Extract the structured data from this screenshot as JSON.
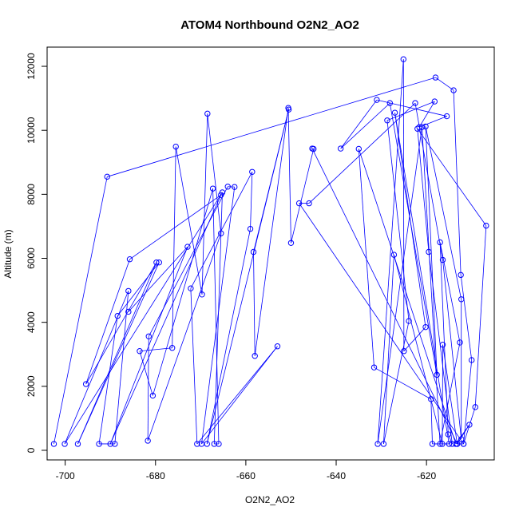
{
  "chart_data": {
    "type": "scatter",
    "title": "ATOM4 Northbound O2N2_AO2",
    "xlabel": "O2N2_AO2",
    "ylabel": "Altitude (m)",
    "xlim": [
      -704,
      -605
    ],
    "ylim": [
      -300,
      12600
    ],
    "x_ticks": [
      -700,
      -680,
      -660,
      -640,
      -620
    ],
    "y_ticks": [
      0,
      2000,
      4000,
      6000,
      8000,
      10000,
      12000
    ],
    "grid": false,
    "connected_points": true,
    "series": [
      {
        "color": "#0000ff",
        "points": [
          [
            -702.5,
            200
          ],
          [
            -690.7,
            8550
          ],
          [
            -618.0,
            11650
          ],
          [
            -614.0,
            11250
          ],
          [
            -612.4,
            5480
          ],
          [
            -610.0,
            2820
          ],
          [
            -611.8,
            200
          ],
          [
            -609.2,
            1350
          ],
          [
            -606.8,
            7020
          ],
          [
            -622.0,
            10050
          ],
          [
            -619.5,
            6200
          ],
          [
            -614.3,
            200
          ],
          [
            -615.2,
            500
          ],
          [
            -617.0,
            6500
          ],
          [
            -612.6,
            3370
          ],
          [
            -617.0,
            200
          ],
          [
            -621.0,
            10100
          ],
          [
            -630.8,
            200
          ],
          [
            -625.1,
            12220
          ],
          [
            -625.0,
            3100
          ],
          [
            -620.2,
            3850
          ],
          [
            -627.0,
            10550
          ],
          [
            -615.0,
            200
          ],
          [
            -618.7,
            200
          ],
          [
            -619.0,
            1600
          ],
          [
            -631.6,
            2590
          ],
          [
            -635.0,
            9420
          ],
          [
            -613.5,
            200
          ],
          [
            -610.5,
            800
          ],
          [
            -613.2,
            200
          ],
          [
            -616.4,
            3300
          ],
          [
            -616.5,
            200
          ],
          [
            -627.2,
            6110
          ],
          [
            -629.5,
            200
          ],
          [
            -623.9,
            4040
          ],
          [
            -628.7,
            10310
          ],
          [
            -618.2,
            10900
          ],
          [
            -621.6,
            10100
          ],
          [
            -615.5,
            10440
          ],
          [
            -631.0,
            10950
          ],
          [
            -639.0,
            9430
          ],
          [
            -628.1,
            10850
          ],
          [
            -617.7,
            2360
          ],
          [
            -620.2,
            10120
          ],
          [
            -612.3,
            4720
          ],
          [
            -612.3,
            350
          ],
          [
            -616.4,
            5950
          ],
          [
            -622.5,
            10850
          ],
          [
            -646.0,
            7720
          ],
          [
            -648.2,
            7720
          ],
          [
            -611.8,
            200
          ],
          [
            -613.2,
            200
          ],
          [
            -645.3,
            9430
          ],
          [
            -645.0,
            9420
          ],
          [
            -650.0,
            6480
          ],
          [
            -650.6,
            10700
          ],
          [
            -658.0,
            2950
          ],
          [
            -658.3,
            6200
          ],
          [
            -650.5,
            10650
          ],
          [
            -668.6,
            200
          ],
          [
            -659.0,
            6920
          ],
          [
            -658.6,
            8700
          ],
          [
            -672.2,
            5060
          ],
          [
            -670.8,
            200
          ],
          [
            -653.0,
            3250
          ],
          [
            -669.8,
            200
          ],
          [
            -662.5,
            8230
          ],
          [
            -664.0,
            8240
          ],
          [
            -681.5,
            3560
          ],
          [
            -681.7,
            300
          ],
          [
            -665.5,
            6780
          ],
          [
            -668.5,
            10520
          ],
          [
            -669.7,
            4870
          ],
          [
            -675.5,
            9490
          ],
          [
            -676.3,
            3200
          ],
          [
            -683.5,
            3100
          ],
          [
            -680.6,
            1710
          ],
          [
            -667.3,
            8180
          ],
          [
            -666.0,
            200
          ],
          [
            -667.0,
            200
          ],
          [
            -665.2,
            8060
          ],
          [
            -700.1,
            200
          ],
          [
            -686.0,
            4980
          ],
          [
            -689.0,
            200
          ],
          [
            -692.5,
            200
          ],
          [
            -688.4,
            4200
          ],
          [
            -679.2,
            5870
          ],
          [
            -697.2,
            200
          ],
          [
            -679.8,
            5870
          ],
          [
            -695.4,
            2070
          ],
          [
            -685.7,
            5970
          ],
          [
            -665.5,
            7980
          ],
          [
            -690.0,
            200
          ],
          [
            -672.9,
            6360
          ],
          [
            -686.0,
            4330
          ]
        ]
      }
    ]
  }
}
